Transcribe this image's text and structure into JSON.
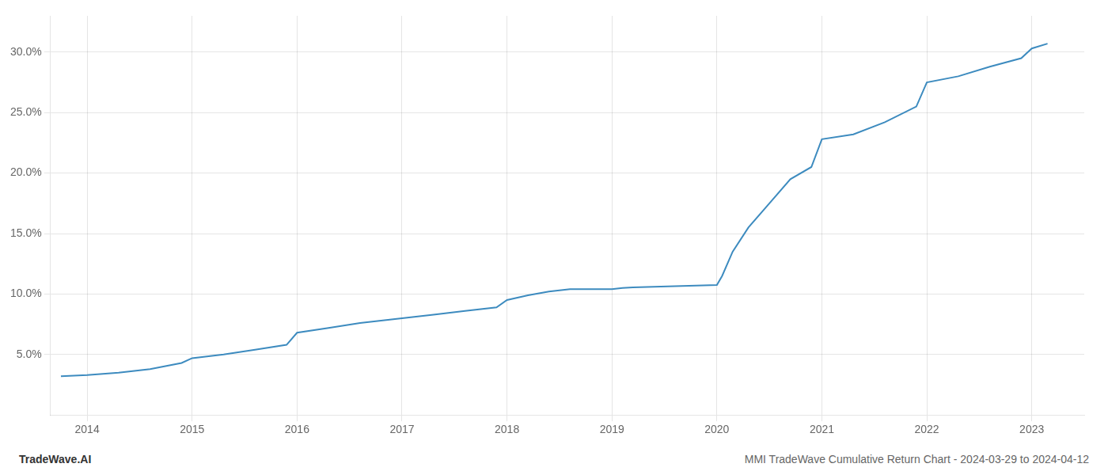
{
  "chart_data": {
    "type": "line",
    "x": [
      2013.75,
      2014.0,
      2014.3,
      2014.6,
      2014.9,
      2015.0,
      2015.3,
      2015.6,
      2015.9,
      2016.0,
      2016.3,
      2016.6,
      2016.9,
      2017.0,
      2017.3,
      2017.6,
      2017.9,
      2018.0,
      2018.2,
      2018.4,
      2018.6,
      2018.8,
      2019.0,
      2019.1,
      2019.2,
      2019.4,
      2019.6,
      2019.8,
      2020.0,
      2020.05,
      2020.15,
      2020.3,
      2020.5,
      2020.7,
      2020.9,
      2021.0,
      2021.3,
      2021.6,
      2021.9,
      2022.0,
      2022.3,
      2022.6,
      2022.9,
      2023.0,
      2023.15
    ],
    "values": [
      3.2,
      3.3,
      3.5,
      3.8,
      4.3,
      4.7,
      5.0,
      5.4,
      5.8,
      6.8,
      7.2,
      7.6,
      7.9,
      8.0,
      8.3,
      8.6,
      8.9,
      9.5,
      9.9,
      10.2,
      10.4,
      10.4,
      10.4,
      10.5,
      10.55,
      10.6,
      10.65,
      10.7,
      10.75,
      11.5,
      13.5,
      15.5,
      17.5,
      19.5,
      20.5,
      22.8,
      23.2,
      24.2,
      25.5,
      27.5,
      28.0,
      28.8,
      29.5,
      30.3,
      30.7
    ],
    "color": "#3d8bbf",
    "xlim": [
      2013.65,
      2023.5
    ],
    "xticks": [
      2014,
      2015,
      2016,
      2017,
      2018,
      2019,
      2020,
      2021,
      2022,
      2023
    ],
    "ylim": [
      0,
      33
    ],
    "yticks": [
      {
        "value": 5.0,
        "label": "5.0%"
      },
      {
        "value": 10.0,
        "label": "10.0%"
      },
      {
        "value": 15.0,
        "label": "15.0%"
      },
      {
        "value": 20.0,
        "label": "20.0%"
      },
      {
        "value": 25.0,
        "label": "25.0%"
      },
      {
        "value": 30.0,
        "label": "30.0%"
      }
    ],
    "grid": true,
    "annotations": [
      "TradeWave.AI",
      "MMI TradeWave Cumulative Return Chart - 2024-03-29 to 2024-04-12"
    ]
  }
}
